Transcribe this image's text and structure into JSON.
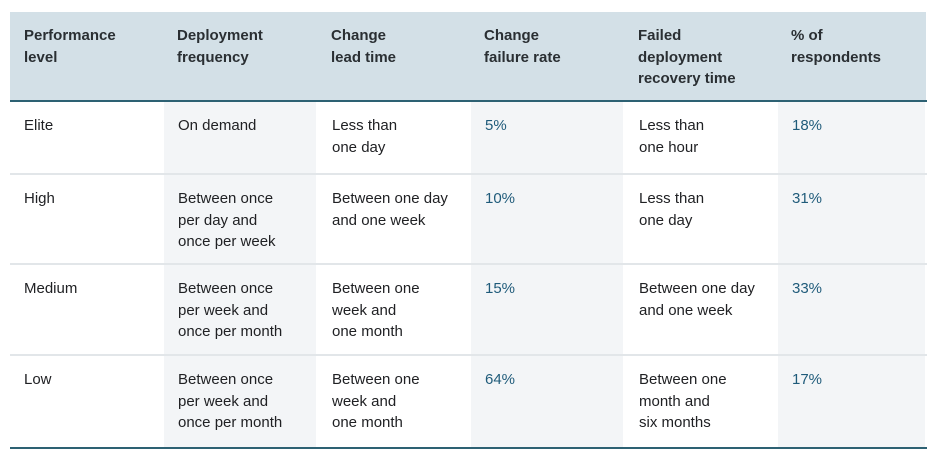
{
  "table": {
    "columns": [
      "Performance\nlevel",
      "Deployment\nfrequency",
      "Change\nlead time",
      "Change\nfailure rate",
      "Failed\ndeployment\nrecovery time",
      "% of\nrespondents"
    ],
    "rows": [
      [
        "Elite",
        "On demand",
        "Less than\none day",
        "5%",
        "Less than\none hour",
        "18%"
      ],
      [
        "High",
        "Between once\nper day and\nonce per week",
        "Between one day\nand one week",
        "10%",
        "Less than\none day",
        "31%"
      ],
      [
        "Medium",
        "Between once\nper week and\nonce per month",
        "Between one\nweek and\none month",
        "15%",
        "Between one day\nand one week",
        "33%"
      ],
      [
        "Low",
        "Between once\nper week and\nonce per month",
        "Between one\nweek and\none month",
        "64%",
        "Between one\nmonth and\nsix months",
        "17%"
      ]
    ]
  }
}
